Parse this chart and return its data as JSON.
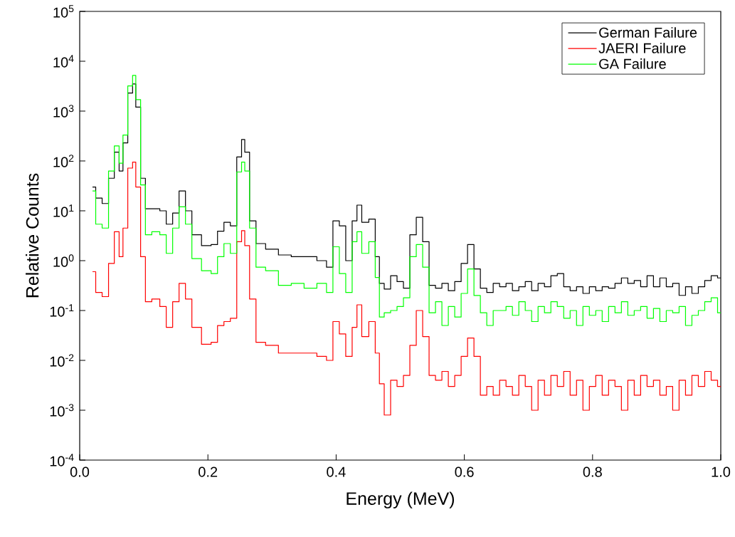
{
  "chart_data": {
    "type": "step",
    "xlabel": "Energy (MeV)",
    "ylabel": "Relative Counts",
    "log": "y",
    "legend": "top right",
    "grid": false,
    "x": [
      0.02,
      0.03,
      0.04,
      0.05,
      0.058,
      0.065,
      0.07,
      0.08,
      0.085,
      0.09,
      0.1,
      0.105,
      0.12,
      0.13,
      0.14,
      0.15,
      0.16,
      0.17,
      0.18,
      0.2,
      0.21,
      0.22,
      0.23,
      0.24,
      0.25,
      0.255,
      0.26,
      0.27,
      0.28,
      0.3,
      0.32,
      0.34,
      0.36,
      0.38,
      0.39,
      0.4,
      0.41,
      0.42,
      0.43,
      0.435,
      0.445,
      0.457,
      0.465,
      0.47,
      0.48,
      0.49,
      0.5,
      0.51,
      0.52,
      0.53,
      0.54,
      0.55,
      0.56,
      0.57,
      0.58,
      0.59,
      0.6,
      0.61,
      0.62,
      0.63,
      0.64,
      0.65,
      0.66,
      0.67,
      0.68,
      0.69,
      0.7,
      0.71,
      0.72,
      0.73,
      0.74,
      0.75,
      0.76,
      0.77,
      0.78,
      0.79,
      0.8,
      0.81,
      0.82,
      0.83,
      0.84,
      0.85,
      0.86,
      0.87,
      0.88,
      0.89,
      0.9,
      0.91,
      0.92,
      0.93,
      0.94,
      0.95,
      0.96,
      0.97,
      0.98,
      0.99,
      1.0
    ],
    "series": [
      {
        "name": "German Failure",
        "color": "#000000",
        "values": [
          30,
          18,
          14,
          45,
          150,
          63,
          230,
          2300,
          3500,
          1200,
          45,
          11,
          11,
          10,
          5.4,
          9,
          25,
          10,
          3.3,
          2,
          2.1,
          3.9,
          5.9,
          5,
          120,
          270,
          150,
          6.3,
          2.2,
          1.7,
          1.3,
          1.2,
          1.2,
          1,
          0.74,
          6.3,
          5,
          1,
          6.3,
          13,
          5.9,
          6.8,
          1.2,
          0.35,
          0.27,
          0.5,
          0.38,
          0.28,
          3.3,
          7.4,
          2.4,
          0.32,
          0.28,
          0.35,
          0.25,
          0.38,
          0.88,
          2.1,
          0.68,
          0.28,
          0.23,
          0.35,
          0.3,
          0.35,
          0.25,
          0.3,
          0.38,
          0.25,
          0.35,
          0.3,
          0.5,
          0.55,
          0.3,
          0.25,
          0.3,
          0.22,
          0.3,
          0.25,
          0.3,
          0.28,
          0.35,
          0.45,
          0.35,
          0.4,
          0.3,
          0.5,
          0.3,
          0.45,
          0.3,
          0.35,
          0.2,
          0.3,
          0.22,
          0.3,
          0.4,
          0.5,
          0.45
        ]
      },
      {
        "name": "JAERI Failure",
        "color": "#ff0000",
        "values": [
          0.6,
          0.23,
          0.19,
          0.88,
          3.8,
          1.2,
          4.5,
          72,
          95,
          30,
          1.2,
          0.15,
          0.17,
          0.12,
          0.046,
          0.15,
          0.35,
          0.17,
          0.046,
          0.021,
          0.023,
          0.05,
          0.06,
          0.07,
          2.4,
          4,
          2,
          0.17,
          0.023,
          0.02,
          0.014,
          0.014,
          0.014,
          0.012,
          0.01,
          0.06,
          0.034,
          0.012,
          0.046,
          0.13,
          0.03,
          0.06,
          0.014,
          0.0034,
          0.0008,
          0.004,
          0.003,
          0.005,
          0.02,
          0.1,
          0.03,
          0.005,
          0.004,
          0.006,
          0.003,
          0.005,
          0.012,
          0.028,
          0.012,
          0.002,
          0.003,
          0.002,
          0.004,
          0.003,
          0.002,
          0.005,
          0.003,
          0.001,
          0.004,
          0.002,
          0.005,
          0.003,
          0.006,
          0.002,
          0.004,
          0.001,
          0.003,
          0.005,
          0.002,
          0.004,
          0.003,
          0.001,
          0.004,
          0.002,
          0.005,
          0.003,
          0.004,
          0.002,
          0.003,
          0.001,
          0.004,
          0.002,
          0.005,
          0.003,
          0.006,
          0.004,
          0.003
        ]
      },
      {
        "name": "GA Failure",
        "color": "#00ff00",
        "values": [
          25,
          5.4,
          4.5,
          63,
          200,
          90,
          330,
          3200,
          5200,
          1700,
          33,
          3.3,
          3.8,
          3.3,
          1.4,
          4.5,
          12,
          5.4,
          1.1,
          0.63,
          0.55,
          1.2,
          2.2,
          1.4,
          60,
          95,
          63,
          4.5,
          0.74,
          0.63,
          0.32,
          0.35,
          0.28,
          0.35,
          0.23,
          1.9,
          0.55,
          0.23,
          2.4,
          3.8,
          1.4,
          2.4,
          0.46,
          0.074,
          0.09,
          0.1,
          0.12,
          0.18,
          1.2,
          2.1,
          0.74,
          0.09,
          0.15,
          0.05,
          0.12,
          0.074,
          0.22,
          0.68,
          0.2,
          0.09,
          0.05,
          0.1,
          0.1,
          0.12,
          0.08,
          0.15,
          0.1,
          0.06,
          0.12,
          0.09,
          0.15,
          0.12,
          0.07,
          0.1,
          0.05,
          0.12,
          0.08,
          0.1,
          0.06,
          0.12,
          0.09,
          0.15,
          0.08,
          0.1,
          0.12,
          0.07,
          0.11,
          0.06,
          0.1,
          0.09,
          0.12,
          0.05,
          0.08,
          0.1,
          0.15,
          0.18,
          0.09
        ]
      }
    ],
    "xlim": [
      0,
      1
    ],
    "xticks": [
      {
        "value": 0,
        "label": "0.0"
      },
      0.2,
      0.4,
      0.6,
      0.8,
      {
        "value": 1,
        "label": "1.0"
      }
    ],
    "ylim": [
      0.0001,
      100000
    ],
    "yticks": [
      {
        "value": 0.0001,
        "label": "10$^{-4}$"
      },
      {
        "value": 0.001,
        "label": "10$^{-3}$"
      },
      {
        "value": 0.01,
        "label": "10$^{-2}$"
      },
      {
        "value": 0.1,
        "label": "10$^{-1}$"
      },
      {
        "value": 1,
        "label": "10$^{0}$"
      },
      {
        "value": 10,
        "label": "10$^{1}$"
      },
      {
        "value": 100,
        "label": "10$^{2}$"
      },
      {
        "value": 1000,
        "label": "10$^{3}$"
      },
      {
        "value": 10000,
        "label": "10$^{4}$"
      },
      {
        "value": 100000,
        "label": "10$^{5}$"
      }
    ]
  }
}
